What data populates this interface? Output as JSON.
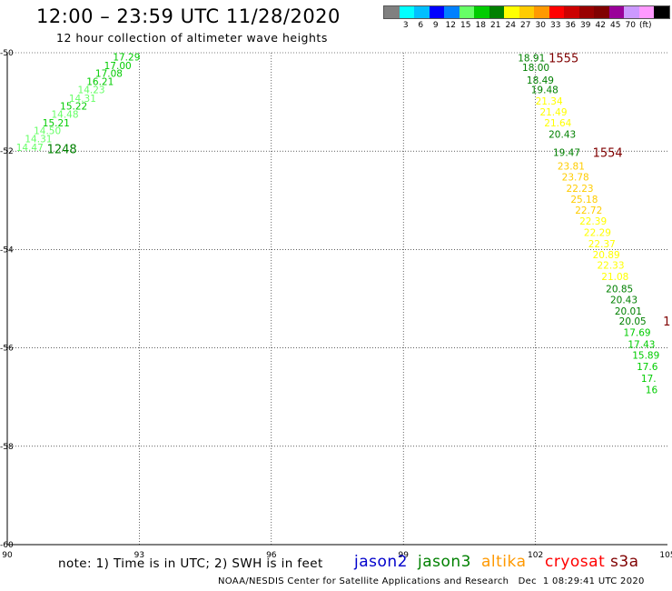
{
  "header": {
    "title": "12:00 – 23:59 UTC 11/28/2020",
    "subtitle": "12 hour collection of altimeter wave heights"
  },
  "colorbar": {
    "colors": [
      "#808080",
      "#00ffff",
      "#00bfff",
      "#0000ff",
      "#0080ff",
      "#66ff66",
      "#00cc00",
      "#008000",
      "#ffff00",
      "#ffcc00",
      "#ff9900",
      "#ff0000",
      "#cc0000",
      "#990000",
      "#800000",
      "#990099",
      "#cc99ff",
      "#ff99ff",
      "#000000"
    ],
    "labels": [
      "3",
      "6",
      "9",
      "12",
      "15",
      "18",
      "21",
      "24",
      "27",
      "30",
      "33",
      "36",
      "39",
      "42",
      "45",
      "70",
      "(ft)"
    ]
  },
  "map": {
    "lon_ticks": [
      "90",
      "93",
      "96",
      "99",
      "102",
      "105"
    ],
    "lat_ticks": [
      "-50",
      "-52",
      "-54",
      "-56",
      "-58",
      "-60"
    ],
    "lon_range": [
      90,
      105
    ],
    "lat_range": [
      -50,
      -60
    ],
    "grid": "dotted"
  },
  "tracks": [
    {
      "time": "1248",
      "color_hex": "#008000",
      "label_lon": 90.9,
      "label_lat": -51.95,
      "points": [
        {
          "lon": 92.4,
          "lat": -50.08,
          "value": "17.29",
          "color": "#00cc00"
        },
        {
          "lon": 92.2,
          "lat": -50.26,
          "value": "17.00",
          "color": "#00cc00"
        },
        {
          "lon": 92.0,
          "lat": -50.42,
          "value": "17.08",
          "color": "#00cc00"
        },
        {
          "lon": 91.8,
          "lat": -50.58,
          "value": "16.21",
          "color": "#00cc00"
        },
        {
          "lon": 91.6,
          "lat": -50.75,
          "value": "14.23",
          "color": "#66ff66"
        },
        {
          "lon": 91.4,
          "lat": -50.92,
          "value": "14.31",
          "color": "#66ff66"
        },
        {
          "lon": 91.2,
          "lat": -51.08,
          "value": "15.22",
          "color": "#00cc00"
        },
        {
          "lon": 91.0,
          "lat": -51.25,
          "value": "14.48",
          "color": "#66ff66"
        },
        {
          "lon": 90.8,
          "lat": -51.42,
          "value": "15.21",
          "color": "#00cc00"
        },
        {
          "lon": 90.6,
          "lat": -51.58,
          "value": "14.50",
          "color": "#66ff66"
        },
        {
          "lon": 90.4,
          "lat": -51.75,
          "value": "14.31",
          "color": "#66ff66"
        },
        {
          "lon": 90.2,
          "lat": -51.92,
          "value": "14.47",
          "color": "#66ff66"
        }
      ]
    },
    {
      "time": "1555",
      "color_hex": "#800000",
      "label_lon": 102.3,
      "label_lat": -50.1,
      "points": [
        {
          "lon": 101.6,
          "lat": -50.1,
          "value": "18.91",
          "color": "#008000"
        },
        {
          "lon": 101.7,
          "lat": -50.3,
          "value": "18.00",
          "color": "#008000"
        },
        {
          "lon": 101.8,
          "lat": -50.55,
          "value": "18.49",
          "color": "#008000"
        },
        {
          "lon": 101.9,
          "lat": -50.75,
          "value": "19.48",
          "color": "#008000"
        },
        {
          "lon": 102.0,
          "lat": -50.98,
          "value": "21.34",
          "color": "#ffff00"
        },
        {
          "lon": 102.1,
          "lat": -51.2,
          "value": "21.49",
          "color": "#ffff00"
        },
        {
          "lon": 102.2,
          "lat": -51.42,
          "value": "21.64",
          "color": "#ffff00"
        },
        {
          "lon": 102.3,
          "lat": -51.65,
          "value": "20.43",
          "color": "#008000"
        }
      ]
    },
    {
      "time": "1554",
      "color_hex": "#800000",
      "label_lon": 103.3,
      "label_lat": -52.02,
      "points": [
        {
          "lon": 102.4,
          "lat": -52.02,
          "value": "19.47",
          "color": "#008000"
        },
        {
          "lon": 102.5,
          "lat": -52.3,
          "value": "23.81",
          "color": "#ffcc00"
        },
        {
          "lon": 102.6,
          "lat": -52.52,
          "value": "23.78",
          "color": "#ffcc00"
        },
        {
          "lon": 102.7,
          "lat": -52.75,
          "value": "22.23",
          "color": "#ffcc00"
        },
        {
          "lon": 102.8,
          "lat": -52.98,
          "value": "25.18",
          "color": "#ffcc00"
        },
        {
          "lon": 102.9,
          "lat": -53.2,
          "value": "22.72",
          "color": "#ffcc00"
        },
        {
          "lon": 103.0,
          "lat": -53.42,
          "value": "22.39",
          "color": "#ffff00"
        },
        {
          "lon": 103.1,
          "lat": -53.65,
          "value": "22.29",
          "color": "#ffff00"
        },
        {
          "lon": 103.2,
          "lat": -53.88,
          "value": "22.37",
          "color": "#ffff00"
        },
        {
          "lon": 103.3,
          "lat": -54.1,
          "value": "20.89",
          "color": "#ffff00"
        },
        {
          "lon": 103.4,
          "lat": -54.32,
          "value": "22.33",
          "color": "#ffff00"
        },
        {
          "lon": 103.5,
          "lat": -54.55,
          "value": "21.08",
          "color": "#ffff00"
        },
        {
          "lon": 103.6,
          "lat": -54.8,
          "value": "20.85",
          "color": "#008000"
        },
        {
          "lon": 103.7,
          "lat": -55.02,
          "value": "20.43",
          "color": "#008000"
        },
        {
          "lon": 103.8,
          "lat": -55.25,
          "value": "20.01",
          "color": "#008000"
        },
        {
          "lon": 103.9,
          "lat": -55.45,
          "value": "20.05",
          "color": "#008000"
        },
        {
          "lon": 104.0,
          "lat": -55.68,
          "value": "17.69",
          "color": "#00cc00"
        },
        {
          "lon": 104.1,
          "lat": -55.92,
          "value": "17.43",
          "color": "#00cc00"
        },
        {
          "lon": 104.2,
          "lat": -56.15,
          "value": "15.89",
          "color": "#00cc00"
        },
        {
          "lon": 104.3,
          "lat": -56.38,
          "value": "17.6",
          "color": "#00cc00"
        },
        {
          "lon": 104.4,
          "lat": -56.62,
          "value": "17.",
          "color": "#00cc00"
        },
        {
          "lon": 104.5,
          "lat": -56.85,
          "value": "16",
          "color": "#00cc00"
        }
      ]
    },
    {
      "time": "1",
      "color_hex": "#800000",
      "label_lon": 104.9,
      "label_lat": -55.45,
      "points": []
    }
  ],
  "footer": {
    "note": "note: 1) Time is in UTC; 2) SWH is in feet",
    "legend": [
      {
        "name": "jason2",
        "color": "#0000cc"
      },
      {
        "name": "jason3",
        "color": "#008000"
      },
      {
        "name": "altika",
        "color": "#ff9900"
      },
      {
        "name": "cryosat",
        "color": "#ff0000"
      },
      {
        "name": "s3a",
        "color": "#800000"
      }
    ],
    "credit": "NOAA/NESDIS Center for Satellite Applications and Research   Dec  1 08:29:41 UTC 2020"
  }
}
